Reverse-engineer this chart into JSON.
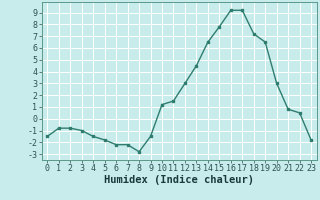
{
  "x": [
    0,
    1,
    2,
    3,
    4,
    5,
    6,
    7,
    8,
    9,
    10,
    11,
    12,
    13,
    14,
    15,
    16,
    17,
    18,
    19,
    20,
    21,
    22,
    23
  ],
  "y": [
    -1.5,
    -0.8,
    -0.8,
    -1.0,
    -1.5,
    -1.8,
    -2.2,
    -2.2,
    -2.8,
    -1.5,
    1.2,
    1.5,
    3.0,
    4.5,
    6.5,
    7.8,
    9.2,
    9.2,
    7.2,
    6.5,
    3.0,
    0.8,
    0.5,
    -1.8
  ],
  "line_color": "#2e7d6e",
  "marker": "s",
  "marker_size": 2.0,
  "bg_color": "#c8ecec",
  "grid_color": "#ffffff",
  "xlabel": "Humidex (Indice chaleur)",
  "ylim": [
    -3.5,
    9.9
  ],
  "xlim": [
    -0.5,
    23.5
  ],
  "yticks": [
    -3,
    -2,
    -1,
    0,
    1,
    2,
    3,
    4,
    5,
    6,
    7,
    8,
    9
  ],
  "xticks": [
    0,
    1,
    2,
    3,
    4,
    5,
    6,
    7,
    8,
    9,
    10,
    11,
    12,
    13,
    14,
    15,
    16,
    17,
    18,
    19,
    20,
    21,
    22,
    23
  ],
  "xlabel_fontsize": 7.5,
  "tick_fontsize": 6.0,
  "line_width": 1.0
}
